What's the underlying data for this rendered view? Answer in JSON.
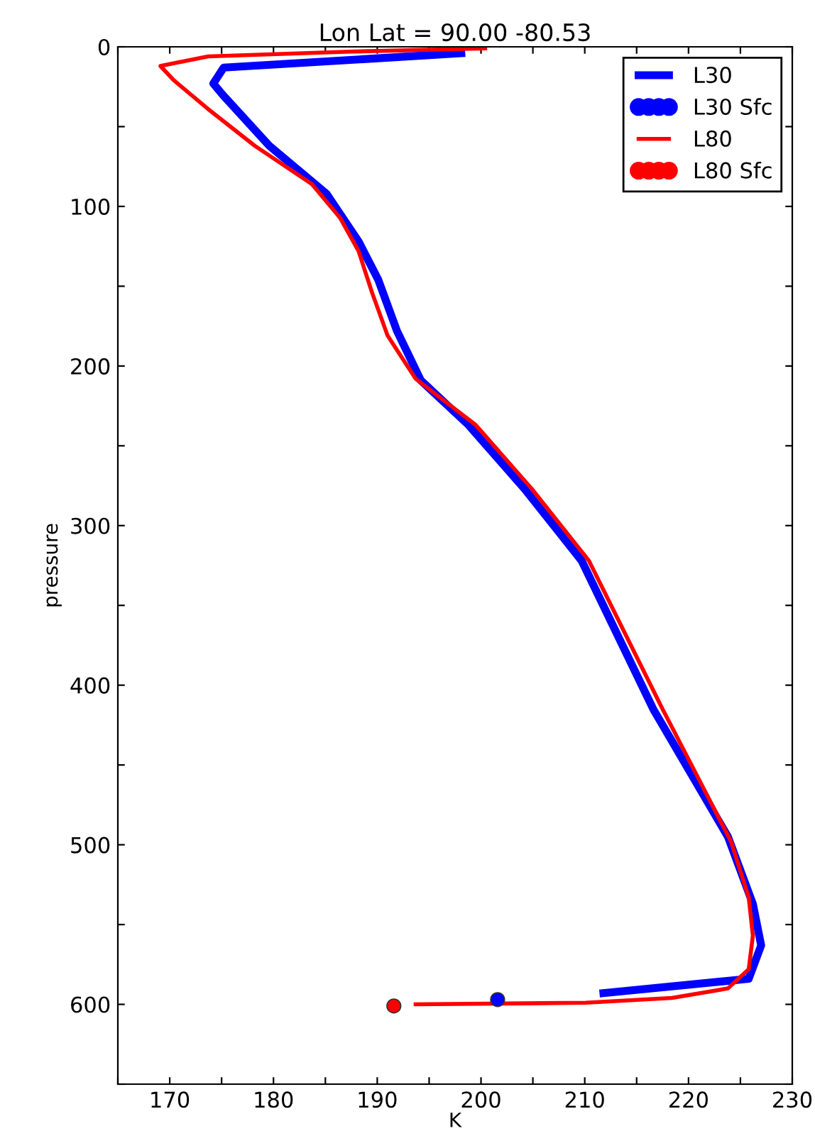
{
  "chart_data": {
    "type": "line",
    "title": "Lon Lat = 90.00 -80.53",
    "xlabel": "K",
    "ylabel": "pressure",
    "xlim": [
      165,
      230
    ],
    "ylim": [
      650,
      0
    ],
    "xticks": [
      {
        "value": 165,
        "label": null
      },
      170,
      {
        "value": 175,
        "label": null
      },
      180,
      {
        "value": 185,
        "label": null
      },
      190,
      {
        "value": 195,
        "label": null
      },
      200,
      {
        "value": 205,
        "label": null
      },
      210,
      {
        "value": 215,
        "label": null
      },
      220,
      {
        "value": 225,
        "label": null
      },
      230
    ],
    "yticks": [
      0,
      {
        "value": 50,
        "label": null
      },
      100,
      {
        "value": 150,
        "label": null
      },
      200,
      {
        "value": 250,
        "label": null
      },
      300,
      {
        "value": 350,
        "label": null
      },
      400,
      {
        "value": 450,
        "label": null
      },
      500,
      {
        "value": 550,
        "label": null
      },
      600,
      {
        "value": 650,
        "label": null
      }
    ],
    "grid": false,
    "legend": "top right",
    "series": [
      {
        "name": "L30",
        "color": "#0000ff",
        "marker": "none",
        "x": [
          198.1,
          175.2,
          174.2,
          175.1,
          179.6,
          185.1,
          188.2,
          190.1,
          191.9,
          194.2,
          198.8,
          204.2,
          209.7,
          216.6,
          223.8,
          226.2,
          227.0,
          225.8,
          211.8
        ],
        "values": [
          4,
          13,
          23,
          30,
          62,
          92,
          122,
          146,
          178,
          209,
          237,
          277,
          322,
          415,
          495,
          537,
          563,
          584,
          593
        ]
      },
      {
        "name": "L30 Sfc",
        "type": "scatter",
        "color": "#0000ff",
        "marker": "circle",
        "x": [
          201.6
        ],
        "values": [
          597
        ]
      },
      {
        "name": "L80",
        "color": "#ff0000",
        "marker": "none",
        "x": [
          200.4,
          187.4,
          173.7,
          169.1,
          170.4,
          173.7,
          178.2,
          183.7,
          186.4,
          188.2,
          189.5,
          191.0,
          193.7,
          199.5,
          204.9,
          210.4,
          217.5,
          224.1,
          225.8,
          226.2,
          225.8,
          223.8,
          218.4,
          210.1,
          193.7
        ],
        "values": [
          1,
          3,
          6,
          12,
          21,
          39,
          62,
          86,
          107,
          128,
          154,
          181,
          208,
          237,
          277,
          322,
          415,
          498,
          533,
          557,
          578,
          590,
          596,
          599,
          600
        ]
      },
      {
        "name": "L80 Sfc",
        "type": "scatter",
        "color": "#ff0000",
        "marker": "circle",
        "x": [
          191.6
        ],
        "values": [
          601
        ]
      }
    ]
  }
}
